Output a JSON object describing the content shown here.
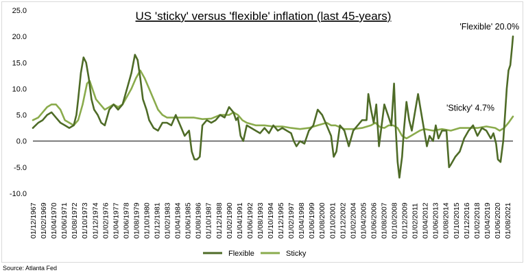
{
  "source": "Source: Atlanta Fed",
  "chart_data": {
    "type": "line",
    "title": "US 'sticky' versus 'flexible' inflation (last 45-years)",
    "xlabel": "",
    "ylabel": "",
    "ylim": [
      -10,
      25
    ],
    "yticks": [
      25,
      20,
      15,
      10,
      5,
      0,
      -5,
      -10
    ],
    "ytick_labels": [
      "25.0",
      "20.0",
      "15.0",
      "10.0",
      "5.0",
      "0.0",
      "-5.0",
      "-10.0"
    ],
    "x_tick_labels": [
      "01/12/1967",
      "01/02/1969",
      "01/04/1970",
      "01/06/1971",
      "01/08/1972",
      "01/10/1973",
      "01/12/1974",
      "01/02/1976",
      "01/04/1977",
      "01/06/1978",
      "01/08/1979",
      "01/10/1980",
      "01/12/1981",
      "01/02/1983",
      "01/04/1984",
      "01/06/1985",
      "01/08/1986",
      "01/10/1987",
      "01/12/1988",
      "01/02/1990",
      "01/04/1991",
      "01/06/1992",
      "01/08/1993",
      "01/10/1994",
      "01/12/1995",
      "01/02/1997",
      "01/04/1998",
      "01/06/1999",
      "01/08/2000",
      "01/10/2001",
      "01/12/2002",
      "01/02/2004",
      "01/04/2005",
      "01/06/2006",
      "01/08/2007",
      "01/10/2008",
      "01/12/2009",
      "01/02/2011",
      "01/04/2012",
      "01/06/2013",
      "01/08/2014",
      "01/10/2015",
      "01/12/2016",
      "01/02/2018",
      "01/04/2019",
      "01/06/2020",
      "01/08/2021"
    ],
    "grid": false,
    "legend": "bottom",
    "series": [
      {
        "name": "Flexible",
        "color": "#4e6b27",
        "x": [
          1967.9,
          1968.5,
          1969.0,
          1969.5,
          1970.0,
          1970.5,
          1971.0,
          1971.5,
          1972.0,
          1972.5,
          1972.8,
          1973.0,
          1973.3,
          1973.6,
          1973.9,
          1974.2,
          1974.5,
          1974.8,
          1975.2,
          1975.6,
          1976.0,
          1976.5,
          1977.0,
          1977.5,
          1978.0,
          1978.5,
          1979.0,
          1979.4,
          1979.7,
          1980.0,
          1980.3,
          1980.7,
          1981.0,
          1981.5,
          1982.0,
          1982.5,
          1983.0,
          1983.5,
          1984.0,
          1984.5,
          1985.0,
          1985.5,
          1985.8,
          1986.1,
          1986.4,
          1986.7,
          1987.0,
          1987.5,
          1988.0,
          1988.5,
          1989.0,
          1989.5,
          1990.0,
          1990.5,
          1990.8,
          1991.0,
          1991.3,
          1991.6,
          1992.0,
          1992.5,
          1993.0,
          1993.5,
          1994.0,
          1994.5,
          1995.0,
          1995.5,
          1996.0,
          1996.5,
          1997.0,
          1997.3,
          1997.6,
          1998.0,
          1998.5,
          1999.0,
          1999.5,
          2000.0,
          2000.5,
          2001.0,
          2001.5,
          2001.8,
          2002.1,
          2002.5,
          2003.0,
          2003.5,
          2004.0,
          2004.5,
          2005.0,
          2005.5,
          2005.7,
          2006.0,
          2006.3,
          2006.6,
          2006.9,
          2007.2,
          2007.5,
          2007.9,
          2008.3,
          2008.6,
          2008.8,
          2009.0,
          2009.2,
          2009.5,
          2009.7,
          2010.0,
          2010.3,
          2010.6,
          2011.0,
          2011.3,
          2011.6,
          2012.0,
          2012.3,
          2012.6,
          2013.0,
          2013.3,
          2013.6,
          2014.0,
          2014.5,
          2014.8,
          2015.0,
          2015.5,
          2016.0,
          2016.5,
          2017.0,
          2017.5,
          2018.0,
          2018.5,
          2019.0,
          2019.5,
          2019.8,
          2020.1,
          2020.3,
          2020.6,
          2020.9,
          2021.1,
          2021.3,
          2021.5,
          2021.7,
          2021.9,
          2022.0
        ],
        "y": [
          2.5,
          3.5,
          4.0,
          5.0,
          5.5,
          4.5,
          3.5,
          3.0,
          2.5,
          3.0,
          5.0,
          8.0,
          13.0,
          16.0,
          15.0,
          12.0,
          8.0,
          6.0,
          5.0,
          3.5,
          3.0,
          6.0,
          7.0,
          6.0,
          7.0,
          10.0,
          13.0,
          16.5,
          15.5,
          12.0,
          8.0,
          6.0,
          4.0,
          2.5,
          2.0,
          3.5,
          3.5,
          3.0,
          5.0,
          3.0,
          1.0,
          2.0,
          -2.0,
          -3.5,
          -3.5,
          -3.0,
          3.0,
          4.0,
          3.5,
          4.0,
          5.0,
          4.5,
          6.5,
          5.5,
          4.0,
          4.5,
          1.0,
          0.0,
          3.0,
          2.5,
          2.0,
          1.5,
          2.5,
          1.5,
          3.0,
          2.0,
          2.5,
          2.0,
          1.5,
          0.0,
          -1.0,
          0.0,
          -0.5,
          2.0,
          3.0,
          6.0,
          5.0,
          3.0,
          1.0,
          -3.0,
          -2.0,
          3.0,
          2.0,
          -1.0,
          2.0,
          3.0,
          4.0,
          4.0,
          9.0,
          6.0,
          3.5,
          7.0,
          -1.0,
          3.0,
          7.0,
          5.0,
          3.0,
          11.0,
          2.0,
          -4.0,
          -7.0,
          -3.0,
          2.0,
          7.5,
          4.0,
          2.0,
          6.0,
          9.0,
          6.0,
          2.0,
          -1.0,
          1.0,
          0.0,
          3.0,
          0.5,
          2.0,
          2.0,
          -5.0,
          -4.5,
          -3.0,
          -2.0,
          0.5,
          2.0,
          3.0,
          1.0,
          2.5,
          2.0,
          0.5,
          1.5,
          -0.5,
          -3.5,
          -4.0,
          0.0,
          5.0,
          10.0,
          13.5,
          14.5,
          18.0,
          20.0
        ]
      },
      {
        "name": "Sticky",
        "color": "#8aab4c",
        "x": [
          1967.9,
          1968.5,
          1969.0,
          1969.5,
          1970.0,
          1970.5,
          1971.0,
          1971.5,
          1972.0,
          1972.5,
          1973.0,
          1973.5,
          1974.0,
          1974.3,
          1974.6,
          1975.0,
          1975.5,
          1976.0,
          1976.5,
          1977.0,
          1977.5,
          1978.0,
          1978.5,
          1979.0,
          1979.5,
          1980.0,
          1980.5,
          1981.0,
          1981.5,
          1982.0,
          1982.5,
          1983.0,
          1983.5,
          1984.0,
          1985.0,
          1986.0,
          1987.0,
          1988.0,
          1989.0,
          1990.0,
          1990.5,
          1991.0,
          1991.5,
          1992.0,
          1993.0,
          1994.0,
          1995.0,
          1996.0,
          1997.0,
          1998.0,
          1999.0,
          2000.0,
          2001.0,
          2001.5,
          2002.0,
          2003.0,
          2004.0,
          2005.0,
          2006.0,
          2006.5,
          2007.0,
          2007.5,
          2008.0,
          2008.5,
          2009.0,
          2009.5,
          2010.0,
          2010.5,
          2011.0,
          2011.5,
          2012.0,
          2013.0,
          2014.0,
          2015.0,
          2016.0,
          2017.0,
          2018.0,
          2019.0,
          2020.0,
          2020.5,
          2021.0,
          2021.5,
          2022.0
        ],
        "y": [
          4.0,
          4.5,
          5.5,
          6.5,
          7.0,
          7.0,
          6.0,
          4.0,
          3.5,
          3.0,
          4.0,
          7.0,
          11.0,
          11.5,
          10.0,
          8.0,
          7.0,
          6.0,
          6.5,
          7.0,
          6.5,
          7.0,
          8.5,
          10.0,
          12.0,
          13.5,
          12.0,
          10.0,
          8.0,
          6.0,
          5.0,
          4.5,
          4.5,
          4.5,
          4.5,
          4.5,
          4.2,
          4.3,
          5.0,
          5.0,
          5.5,
          5.0,
          4.0,
          3.5,
          3.0,
          3.0,
          2.8,
          2.8,
          2.5,
          2.3,
          2.5,
          3.0,
          3.5,
          3.0,
          3.0,
          2.3,
          2.3,
          2.5,
          3.0,
          3.5,
          2.7,
          2.5,
          3.0,
          3.0,
          2.5,
          1.0,
          0.5,
          1.0,
          1.5,
          2.0,
          2.3,
          2.0,
          2.3,
          2.0,
          2.5,
          2.5,
          2.5,
          2.8,
          2.5,
          2.0,
          2.5,
          3.5,
          4.7
        ]
      }
    ],
    "annotations": [
      {
        "text": "'Flexible' 20.0%",
        "x": 2016.0,
        "y": 21.3
      },
      {
        "text": "'Sticky' 4.7%",
        "x": 2014.5,
        "y": 5.8
      }
    ]
  }
}
